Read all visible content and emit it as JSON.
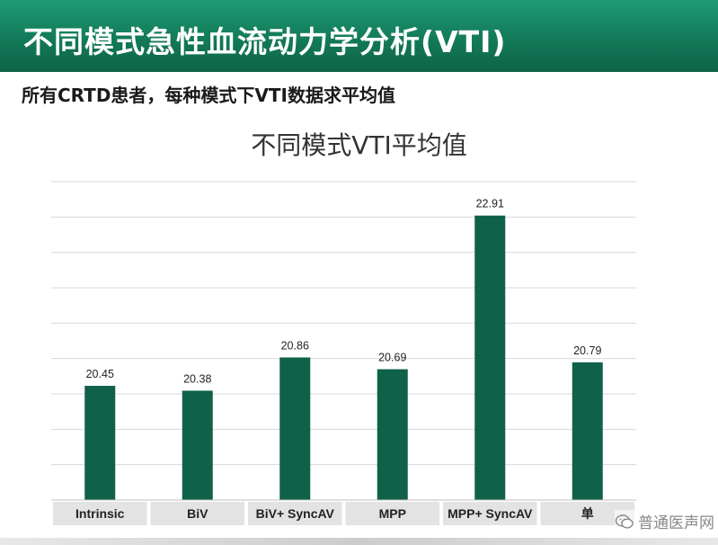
{
  "header": {
    "title": "不同模式急性血流动力学分析(VTI)"
  },
  "subtitle": "所有CRTD患者，每种模式下VTI数据求平均值",
  "watermark": {
    "text": "普通医声网",
    "icon": "wechat-icon"
  },
  "colors": {
    "header": "#137a59",
    "bar": "#10614a",
    "grid": "#d9d9d9",
    "category_bg": "#e3e3e3"
  },
  "chart_data": {
    "type": "bar",
    "title": "不同模式VTI平均值",
    "categories": [
      "Intrinsic",
      "BiV",
      "BiV+  SyncAV",
      "MPP",
      "MPP+ SyncAV",
      "单"
    ],
    "values": [
      20.45,
      20.38,
      20.86,
      20.69,
      22.91,
      20.79
    ],
    "data_labels": [
      "20.45",
      "20.38",
      "20.86",
      "20.69",
      "22.91",
      "20.79"
    ],
    "xlabel": "",
    "ylabel": "",
    "ylim": [
      18.8,
      23.4
    ],
    "grid": true,
    "legend": "none"
  }
}
